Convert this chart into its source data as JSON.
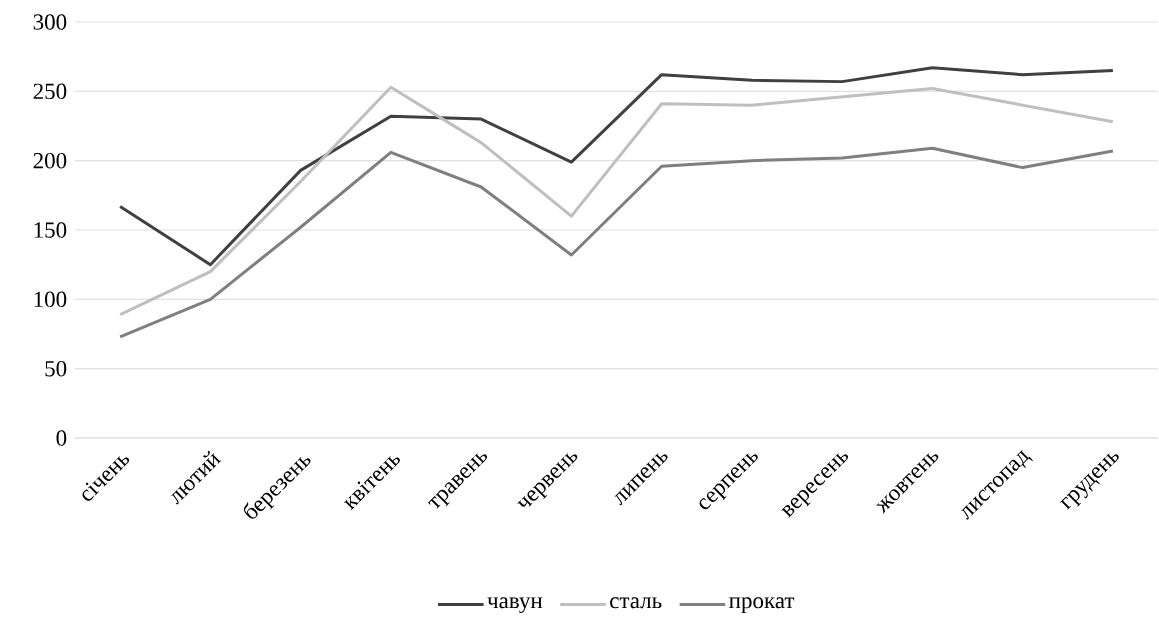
{
  "chart_data": {
    "type": "line",
    "categories": [
      "січень",
      "лютий",
      "березень",
      "квітень",
      "травень",
      "червень",
      "липень",
      "серпень",
      "вересень",
      "жовтень",
      "листопад",
      "грудень"
    ],
    "series": [
      {
        "name": "чавун",
        "color": "#404040",
        "values": [
          167,
          125,
          193,
          232,
          230,
          199,
          262,
          258,
          257,
          267,
          262,
          265
        ]
      },
      {
        "name": "сталь",
        "color": "#bfbfbf",
        "values": [
          89,
          120,
          185,
          253,
          213,
          160,
          241,
          240,
          246,
          252,
          240,
          228
        ]
      },
      {
        "name": "прокат",
        "color": "#7f7f7f",
        "values": [
          73,
          100,
          152,
          206,
          181,
          132,
          196,
          200,
          202,
          209,
          195,
          207
        ]
      }
    ],
    "ylim": [
      0,
      300
    ],
    "yticks": [
      0,
      50,
      100,
      150,
      200,
      250,
      300
    ],
    "grid": "y",
    "legend": "bottom",
    "marker": "none",
    "line_style": "solid"
  }
}
